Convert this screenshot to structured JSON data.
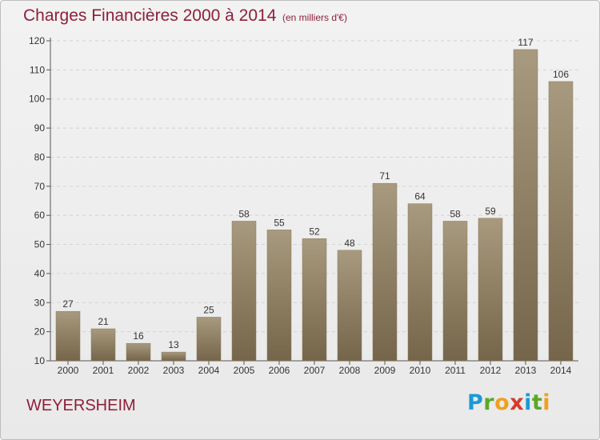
{
  "title": "Charges Financières 2000 à 2014",
  "subtitle": "(en milliers d'€)",
  "city": "WEYERSHEIM",
  "brand": {
    "letters": [
      "P",
      "r",
      "o",
      "x",
      "i",
      "t",
      "i"
    ],
    "colors": [
      "#1a9ad6",
      "#5aa828",
      "#f0a020",
      "#d63a2a",
      "#1a9ad6",
      "#5aa828",
      "#f0a020"
    ]
  },
  "colors": {
    "bar_top": "#a89a7e",
    "bar_bottom": "#75654a",
    "title": "#8e1f3a",
    "background": "#eeeeee"
  },
  "chart_data": {
    "type": "bar",
    "categories": [
      "2000",
      "2001",
      "2002",
      "2003",
      "2004",
      "2005",
      "2006",
      "2007",
      "2008",
      "2009",
      "2010",
      "2011",
      "2012",
      "2013",
      "2014"
    ],
    "values": [
      27,
      21,
      16,
      13,
      25,
      58,
      55,
      52,
      48,
      71,
      64,
      58,
      59,
      117,
      106
    ],
    "ylim": [
      10,
      120
    ],
    "yticks": [
      10,
      20,
      30,
      40,
      50,
      60,
      70,
      80,
      90,
      100,
      110,
      120
    ],
    "grid": true,
    "xlabel": "",
    "ylabel": ""
  }
}
